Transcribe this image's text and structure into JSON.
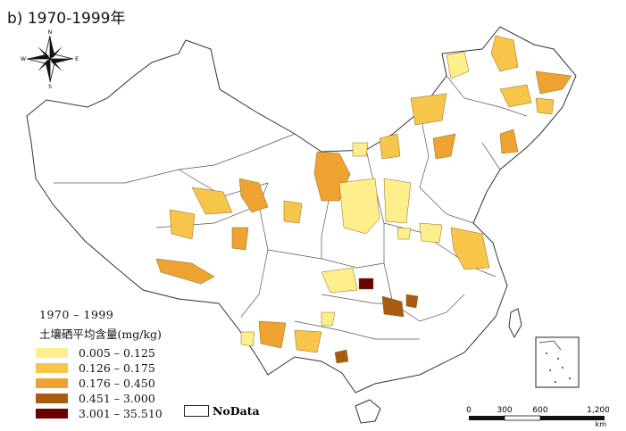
{
  "panel_label": "b) 1970-1999年",
  "legend": {
    "period": "1970 – 1999",
    "subtitle": "土壤硒平均含量(mg/kg)",
    "items": [
      {
        "label": "0.005 – 0.125",
        "color": "#ffee8c"
      },
      {
        "label": "0.126 – 0.175",
        "color": "#f7c549"
      },
      {
        "label": "0.176 – 0.450",
        "color": "#eea232"
      },
      {
        "label": "0.451 – 3.000",
        "color": "#a95b12"
      },
      {
        "label": "3.001 – 35.510",
        "color": "#6b0000"
      }
    ],
    "nodata_label": "NoData"
  },
  "scale": {
    "ticks": [
      "0",
      "300",
      "600",
      "1,200"
    ],
    "unit": "km"
  },
  "compass": {
    "n": "N",
    "s": "S",
    "e": "E",
    "w": "W",
    "icon": "compass-rose-icon"
  }
}
